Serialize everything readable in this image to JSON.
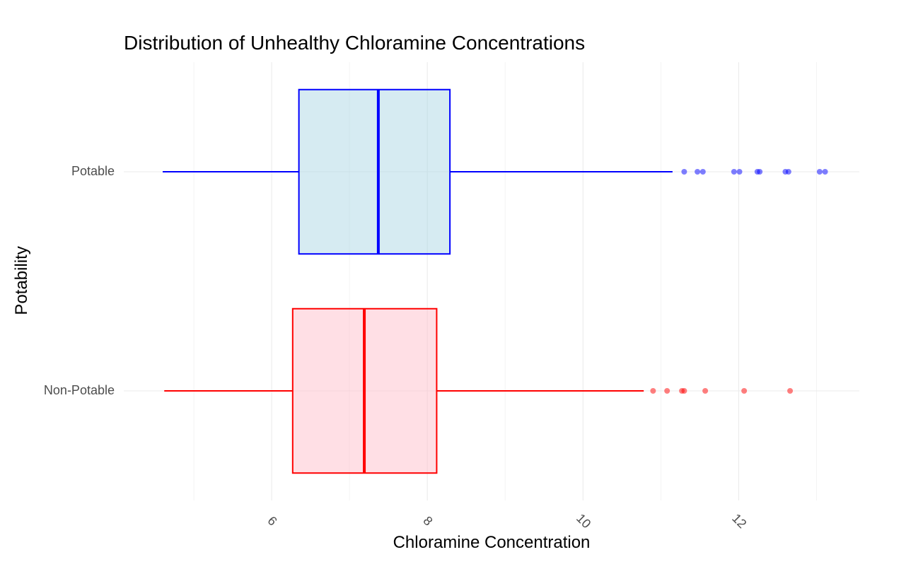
{
  "chart_data": {
    "type": "boxplot",
    "orientation": "horizontal",
    "title": "Distribution of Unhealthy Chloramine Concentrations",
    "xlabel": "Chloramine Concentration",
    "ylabel": "Potability",
    "xlim": [
      4.1,
      13.55
    ],
    "x_ticks": [
      6,
      8,
      10,
      12
    ],
    "x_tick_labels": [
      "6",
      "8",
      "10",
      "12"
    ],
    "x_minor_ticks": [
      5,
      7,
      9,
      11,
      13
    ],
    "x_tick_rotation_deg": 45,
    "grid": true,
    "categories": [
      "Non-Potable",
      "Potable"
    ],
    "series": [
      {
        "category": "Non-Potable",
        "min": 4.62,
        "q1": 6.27,
        "median": 7.19,
        "q3": 8.12,
        "max": 10.78,
        "outliers": [
          10.9,
          11.08,
          11.27,
          11.3,
          11.57,
          12.07,
          12.66
        ],
        "color": "#ff0000",
        "fill": "#ffc0cb"
      },
      {
        "category": "Potable",
        "min": 4.6,
        "q1": 6.35,
        "median": 7.37,
        "q3": 8.29,
        "max": 11.15,
        "outliers": [
          11.3,
          11.47,
          11.54,
          11.94,
          12.01,
          12.24,
          12.27,
          12.6,
          12.64,
          13.04,
          13.11
        ],
        "color": "#0000ff",
        "fill": "#add8e6"
      }
    ]
  }
}
